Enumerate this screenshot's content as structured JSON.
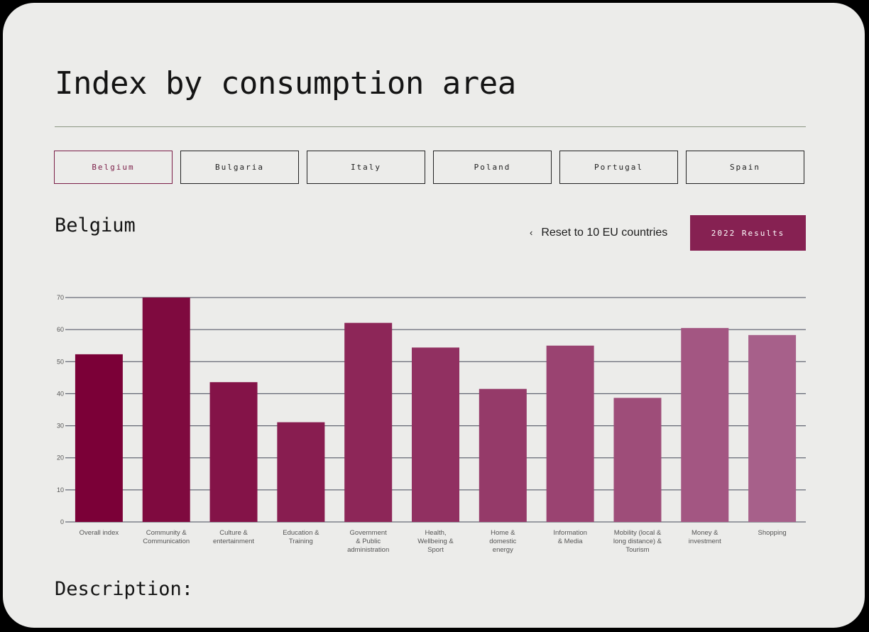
{
  "page": {
    "title": "Index by consumption area",
    "description_heading": "Description:"
  },
  "tabs": [
    {
      "label": "Belgium",
      "active": true
    },
    {
      "label": "Bulgaria",
      "active": false
    },
    {
      "label": "Italy",
      "active": false
    },
    {
      "label": "Poland",
      "active": false
    },
    {
      "label": "Portugal",
      "active": false
    },
    {
      "label": "Spain",
      "active": false
    }
  ],
  "selected_country": "Belgium",
  "controls": {
    "reset_label": "Reset to 10 EU countries",
    "results_label": "2022 Results"
  },
  "colors": {
    "accent": "#862152",
    "bar_start": "#7b0037",
    "bar_end": "#a7608a",
    "gridline": "#464a5a"
  },
  "chart_data": {
    "type": "bar",
    "categories": [
      [
        "Overall index"
      ],
      [
        "Community &",
        "Communication"
      ],
      [
        "Culture &",
        "entertainment"
      ],
      [
        "Education &",
        "Training"
      ],
      [
        "Government",
        "& Public",
        "administration"
      ],
      [
        "Health,",
        "Wellbeing &",
        "Sport"
      ],
      [
        "Home &",
        "domestic",
        "energy"
      ],
      [
        "Information",
        "& Media"
      ],
      [
        "Mobility (local &",
        "long distance) &",
        "Tourism"
      ],
      [
        "Money &",
        "investment"
      ],
      [
        "Shopping"
      ]
    ],
    "values": [
      52.3,
      70.0,
      43.6,
      31.1,
      62.1,
      54.4,
      41.5,
      55.0,
      38.7,
      60.5,
      58.3
    ],
    "ylim": [
      0,
      70
    ],
    "yticks": [
      0,
      10,
      20,
      30,
      40,
      50,
      60,
      70
    ],
    "grid": true
  }
}
